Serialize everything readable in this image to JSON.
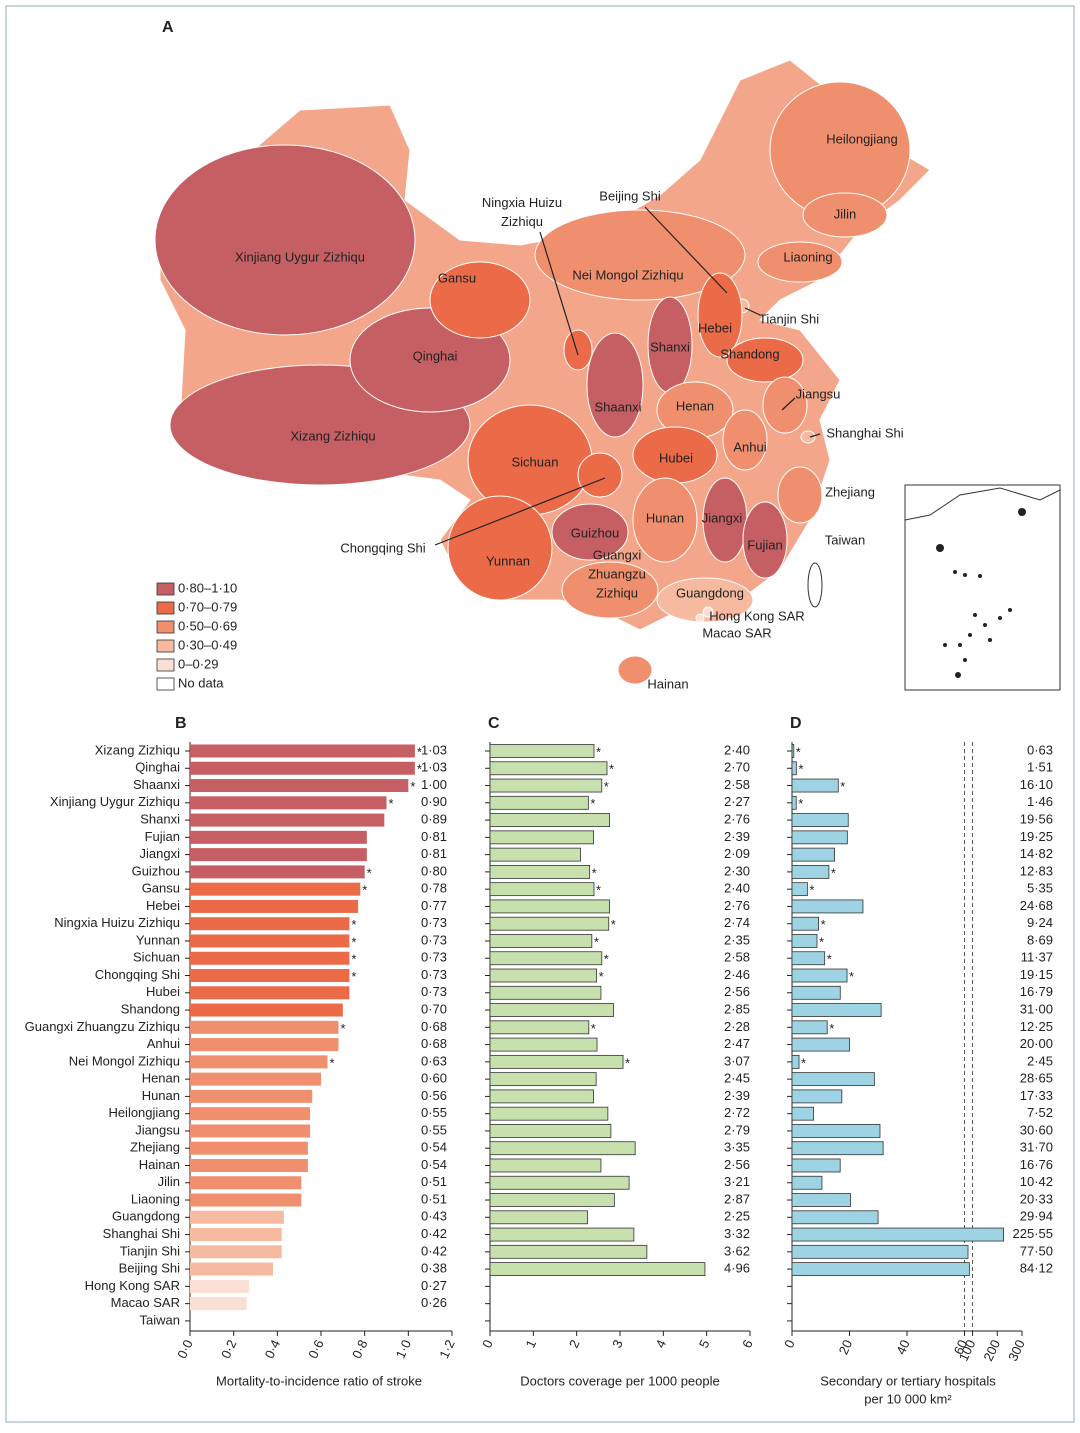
{
  "chart_data": [
    {
      "type": "choropleth",
      "panel": "A",
      "regions": [
        {
          "label": [
            "Xinjiang Uygur Zizhiqu"
          ]
        },
        {
          "label": [
            "Xizang Zizhiqu"
          ]
        },
        {
          "label": [
            "Qinghai"
          ]
        },
        {
          "label": [
            "Gansu"
          ]
        },
        {
          "label": [
            "Nei Mongol Zizhiqu"
          ]
        },
        {
          "label": [
            "Heilongjiang"
          ]
        },
        {
          "label": [
            "Jilin"
          ]
        },
        {
          "label": [
            "Liaoning"
          ]
        },
        {
          "label": [
            "Ningxia Huizu",
            "Zizhiqu"
          ]
        },
        {
          "label": [
            "Beijing Shi"
          ]
        },
        {
          "label": [
            "Tianjin Shi"
          ]
        },
        {
          "label": [
            "Hebei"
          ]
        },
        {
          "label": [
            "Shanxi"
          ]
        },
        {
          "label": [
            "Shandong"
          ]
        },
        {
          "label": [
            "Shaanxi"
          ]
        },
        {
          "label": [
            "Henan"
          ]
        },
        {
          "label": [
            "Jiangsu"
          ]
        },
        {
          "label": [
            "Anhui"
          ]
        },
        {
          "label": [
            "Shanghai Shi"
          ]
        },
        {
          "label": [
            "Sichuan"
          ]
        },
        {
          "label": [
            "Hubei"
          ]
        },
        {
          "label": [
            "Chongqing Shi"
          ]
        },
        {
          "label": [
            "Zhejiang"
          ]
        },
        {
          "label": [
            "Hunan"
          ]
        },
        {
          "label": [
            "Jiangxi"
          ]
        },
        {
          "label": [
            "Guizhou"
          ]
        },
        {
          "label": [
            "Yunnan"
          ]
        },
        {
          "label": [
            "Fujian"
          ]
        },
        {
          "label": [
            "Taiwan"
          ]
        },
        {
          "label": [
            "Guangxi",
            "Zhuangzu",
            "Zizhiqu"
          ]
        },
        {
          "label": [
            "Guangdong"
          ]
        },
        {
          "label": [
            "Hong Kong SAR"
          ]
        },
        {
          "label": [
            "Macao SAR"
          ]
        },
        {
          "label": [
            "Hainan"
          ]
        }
      ],
      "legend": [
        {
          "label": "0·80–1·10",
          "range": [
            0.8,
            1.1
          ],
          "color": "#c65f63"
        },
        {
          "label": "0·70–0·79",
          "range": [
            0.7,
            0.79
          ],
          "color": "#eb6a48"
        },
        {
          "label": "0·50–0·69",
          "range": [
            0.5,
            0.69
          ],
          "color": "#f08f6d"
        },
        {
          "label": "0·30–0·49",
          "range": [
            0.3,
            0.49
          ],
          "color": "#f6baa0"
        },
        {
          "label": "0–0·29",
          "range": [
            0,
            0.29
          ],
          "color": "#fae0d4"
        },
        {
          "label": "No data",
          "color": "#ffffff"
        }
      ]
    },
    {
      "type": "bar",
      "panel": "B",
      "orientation": "horizontal",
      "categories": [
        "Xizang Zizhiqu",
        "Qinghai",
        "Shaanxi",
        "Xinjiang Uygur Zizhiqu",
        "Shanxi",
        "Fujian",
        "Jiangxi",
        "Guizhou",
        "Gansu",
        "Hebei",
        "Ningxia Huizu Zizhiqu",
        "Yunnan",
        "Sichuan",
        "Chongqing Shi",
        "Hubei",
        "Shandong",
        "Guangxi Zhuangzu Zizhiqu",
        "Anhui",
        "Nei Mongol Zizhiqu",
        "Henan",
        "Hunan",
        "Heilongjiang",
        "Jiangsu",
        "Zhejiang",
        "Hainan",
        "Jilin",
        "Liaoning",
        "Guangdong",
        "Shanghai Shi",
        "Tianjin Shi",
        "Beijing Shi",
        "Hong Kong SAR",
        "Macao SAR",
        "Taiwan"
      ],
      "values": [
        1.03,
        1.03,
        1.0,
        0.9,
        0.89,
        0.81,
        0.81,
        0.8,
        0.78,
        0.77,
        0.73,
        0.73,
        0.73,
        0.73,
        0.73,
        0.7,
        0.68,
        0.68,
        0.63,
        0.6,
        0.56,
        0.55,
        0.55,
        0.54,
        0.54,
        0.51,
        0.51,
        0.43,
        0.42,
        0.42,
        0.38,
        0.27,
        0.26,
        null
      ],
      "value_labels": [
        "1·03",
        "1·03",
        "1·00",
        "0·90",
        "0·89",
        "0·81",
        "0·81",
        "0·80",
        "0·78",
        "0·77",
        "0·73",
        "0·73",
        "0·73",
        "0·73",
        "0·73",
        "0·70",
        "0·68",
        "0·68",
        "0·63",
        "0·60",
        "0·56",
        "0·55",
        "0·55",
        "0·54",
        "0·54",
        "0·51",
        "0·51",
        "0·43",
        "0·42",
        "0·42",
        "0·38",
        "0·27",
        "0·26",
        null
      ],
      "starred": [
        true,
        true,
        true,
        true,
        false,
        false,
        false,
        true,
        true,
        false,
        true,
        true,
        true,
        true,
        false,
        false,
        true,
        false,
        true,
        false,
        false,
        false,
        false,
        false,
        false,
        false,
        false,
        false,
        false,
        false,
        false,
        false,
        false,
        false
      ],
      "star_label": "*",
      "colors_from_legend": true,
      "xlabel": [
        "Mortality-to-incidence ratio of stroke"
      ],
      "xlim": [
        0,
        1.2
      ],
      "xticks": [
        {
          "value": 0,
          "label": "0·0"
        },
        {
          "value": 0.2,
          "label": "0·2"
        },
        {
          "value": 0.4,
          "label": "0·4"
        },
        {
          "value": 0.6,
          "label": "0·6"
        },
        {
          "value": 0.8,
          "label": "0·8"
        },
        {
          "value": 1.0,
          "label": "1·0"
        },
        {
          "value": 1.2,
          "label": "1·2"
        }
      ]
    },
    {
      "type": "bar",
      "panel": "C",
      "orientation": "horizontal",
      "color": "#c8e0ae",
      "values": [
        2.4,
        2.7,
        2.58,
        2.27,
        2.76,
        2.39,
        2.09,
        2.3,
        2.4,
        2.76,
        2.74,
        2.35,
        2.58,
        2.46,
        2.56,
        2.85,
        2.28,
        2.47,
        3.07,
        2.45,
        2.39,
        2.72,
        2.79,
        3.35,
        2.56,
        3.21,
        2.87,
        2.25,
        3.32,
        3.62,
        4.96,
        null,
        null,
        null
      ],
      "value_labels": [
        "2·40",
        "2·70",
        "2·58",
        "2·27",
        "2·76",
        "2·39",
        "2·09",
        "2·30",
        "2·40",
        "2·76",
        "2·74",
        "2·35",
        "2·58",
        "2·46",
        "2·56",
        "2·85",
        "2·28",
        "2·47",
        "3·07",
        "2·45",
        "2·39",
        "2·72",
        "2·79",
        "3·35",
        "2·56",
        "3·21",
        "2·87",
        "2·25",
        "3·32",
        "3·62",
        "4·96",
        null,
        null,
        null
      ],
      "starred": [
        true,
        true,
        true,
        true,
        false,
        false,
        false,
        true,
        true,
        false,
        true,
        true,
        true,
        true,
        false,
        false,
        true,
        false,
        true,
        false,
        false,
        false,
        false,
        false,
        false,
        false,
        false,
        false,
        false,
        false,
        false,
        false,
        false,
        false
      ],
      "star_label": "*",
      "xlabel": [
        "Doctors coverage per 1000 people"
      ],
      "xlim": [
        0,
        6
      ],
      "xticks": [
        0,
        1,
        2,
        3,
        4,
        5,
        6
      ]
    },
    {
      "type": "bar",
      "panel": "D",
      "orientation": "horizontal",
      "color": "#9dd3e2",
      "values": [
        0.63,
        1.51,
        16.1,
        1.46,
        19.56,
        19.25,
        14.82,
        12.83,
        5.35,
        24.68,
        9.24,
        8.69,
        11.37,
        19.15,
        16.79,
        31.0,
        12.25,
        20.0,
        2.45,
        28.65,
        17.33,
        7.52,
        30.6,
        31.7,
        16.76,
        10.42,
        20.33,
        29.94,
        225.55,
        77.5,
        84.12,
        null,
        null,
        null
      ],
      "value_labels": [
        "0·63",
        "1·51",
        "16·10",
        "1·46",
        "19·56",
        "19·25",
        "14·82",
        "12·83",
        "5·35",
        "24·68",
        "9·24",
        "8·69",
        "11·37",
        "19·15",
        "16·79",
        "31·00",
        "12·25",
        "20·00",
        "2·45",
        "28·65",
        "17·33",
        "7·52",
        "30·60",
        "31·70",
        "16·76",
        "10·42",
        "20·33",
        "29·94",
        "225·55",
        "77·50",
        "84·12",
        null,
        null,
        null
      ],
      "starred": [
        true,
        true,
        true,
        true,
        false,
        false,
        false,
        true,
        true,
        false,
        true,
        true,
        true,
        true,
        false,
        false,
        true,
        false,
        true,
        false,
        false,
        false,
        false,
        false,
        false,
        false,
        false,
        false,
        false,
        false,
        false,
        false,
        false,
        false
      ],
      "star_label": "*",
      "xlabel": [
        "Secondary or tertiary hospitals",
        "per 10 000 km²"
      ],
      "xlim": [
        0,
        300
      ],
      "xbreak": [
        60,
        100
      ],
      "xticks": [
        0,
        20,
        40,
        60,
        100,
        200,
        300
      ]
    }
  ]
}
